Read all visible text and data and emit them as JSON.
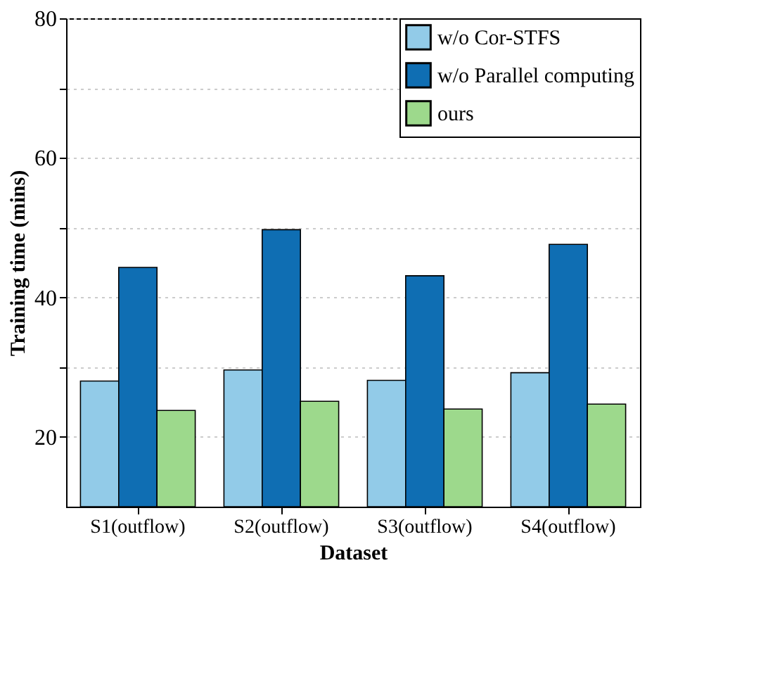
{
  "chart_data": {
    "type": "bar",
    "xlabel": "Dataset",
    "ylabel": "Training time (mins)",
    "categories": [
      "S1(outflow)",
      "S2(outflow)",
      "S3(outflow)",
      "S4(outflow)"
    ],
    "series": [
      {
        "name": "w/o Cor-STFS",
        "color": "#92cbe8",
        "values": [
          28,
          29.6,
          28.1,
          29.2
        ]
      },
      {
        "name": "w/o Parallel computing",
        "color": "#0f6eb3",
        "values": [
          44.3,
          49.7,
          43.1,
          47.6
        ]
      },
      {
        "name": "ours",
        "color": "#9dd98c",
        "values": [
          23.8,
          25.1,
          24,
          24.7
        ]
      }
    ],
    "ylim": [
      10,
      80
    ],
    "yticks": [
      20,
      {
        "value": 30,
        "label": null
      },
      40,
      {
        "value": 50,
        "label": null
      },
      60,
      {
        "value": 70,
        "label": null
      },
      80
    ],
    "grid": "y",
    "legend": "top right"
  }
}
